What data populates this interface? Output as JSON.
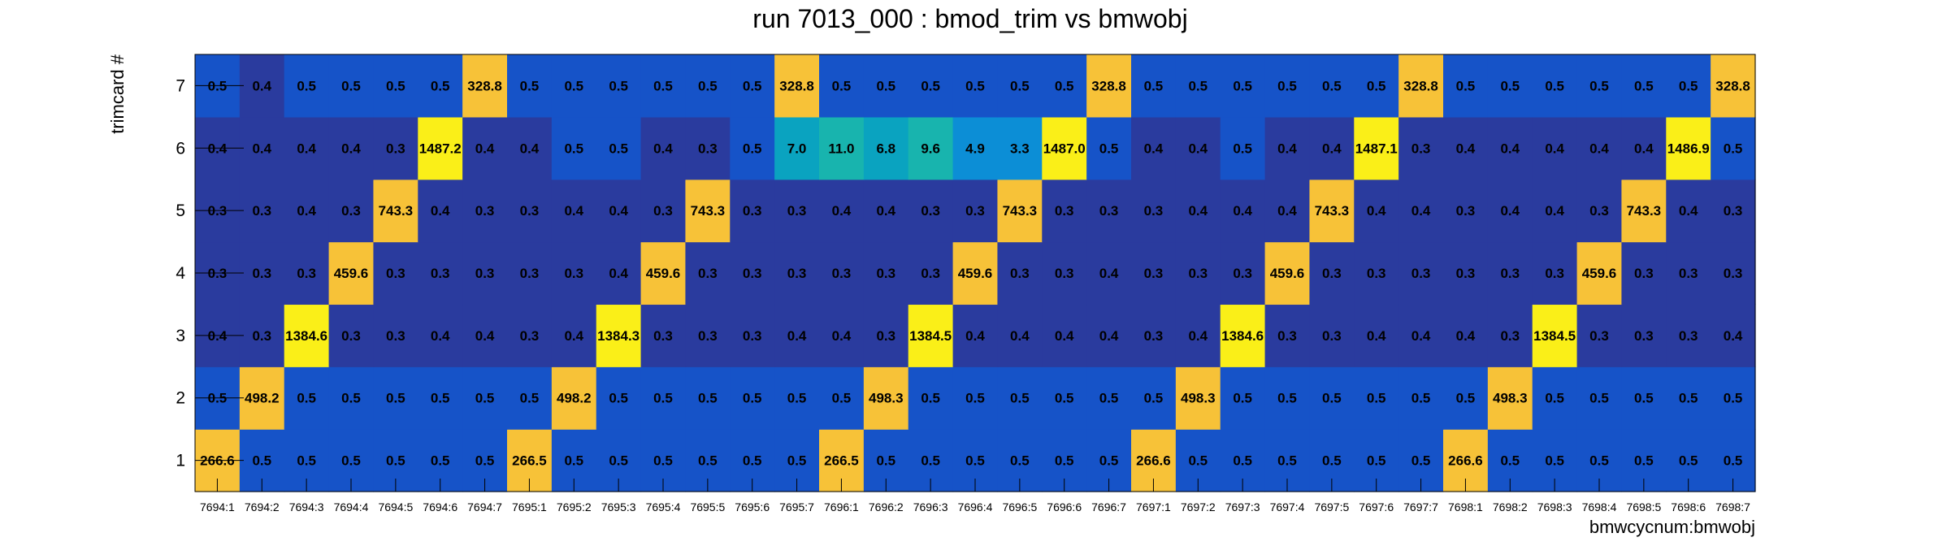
{
  "chart_data": {
    "type": "heatmap",
    "title": "run 7013_000 : bmod_trim vs bmwobj",
    "xlabel": "bmwcycnum:bmwobj",
    "ylabel": "trimcard #",
    "x_categories": [
      "7694:1",
      "7694:2",
      "7694:3",
      "7694:4",
      "7694:5",
      "7694:6",
      "7694:7",
      "7695:1",
      "7695:2",
      "7695:3",
      "7695:4",
      "7695:5",
      "7695:6",
      "7695:7",
      "7696:1",
      "7696:2",
      "7696:3",
      "7696:4",
      "7696:5",
      "7696:6",
      "7696:7",
      "7697:1",
      "7697:2",
      "7697:3",
      "7697:4",
      "7697:5",
      "7697:6",
      "7697:7",
      "7698:1",
      "7698:2",
      "7698:3",
      "7698:4",
      "7698:5",
      "7698:6",
      "7698:7"
    ],
    "y_categories": [
      "1",
      "2",
      "3",
      "4",
      "5",
      "6",
      "7"
    ],
    "grid": false,
    "legend": "none",
    "rows": [
      {
        "y": "1",
        "values": [
          "266.6",
          "0.5",
          "0.5",
          "0.5",
          "0.5",
          "0.5",
          "0.5",
          "266.5",
          "0.5",
          "0.5",
          "0.5",
          "0.5",
          "0.5",
          "0.5",
          "266.5",
          "0.5",
          "0.5",
          "0.5",
          "0.5",
          "0.5",
          "0.5",
          "266.6",
          "0.5",
          "0.5",
          "0.5",
          "0.5",
          "0.5",
          "0.5",
          "266.6",
          "0.5",
          "0.5",
          "0.5",
          "0.5",
          "0.5",
          "0.5"
        ]
      },
      {
        "y": "2",
        "values": [
          "0.5",
          "498.2",
          "0.5",
          "0.5",
          "0.5",
          "0.5",
          "0.5",
          "0.5",
          "498.2",
          "0.5",
          "0.5",
          "0.5",
          "0.5",
          "0.5",
          "0.5",
          "498.3",
          "0.5",
          "0.5",
          "0.5",
          "0.5",
          "0.5",
          "0.5",
          "498.3",
          "0.5",
          "0.5",
          "0.5",
          "0.5",
          "0.5",
          "0.5",
          "498.3",
          "0.5",
          "0.5",
          "0.5",
          "0.5",
          "0.5"
        ]
      },
      {
        "y": "3",
        "values": [
          "0.4",
          "0.3",
          "1384.6",
          "0.3",
          "0.3",
          "0.4",
          "0.4",
          "0.3",
          "0.4",
          "1384.3",
          "0.3",
          "0.3",
          "0.3",
          "0.4",
          "0.4",
          "0.3",
          "1384.5",
          "0.4",
          "0.4",
          "0.4",
          "0.4",
          "0.3",
          "0.4",
          "1384.6",
          "0.3",
          "0.3",
          "0.4",
          "0.4",
          "0.4",
          "0.3",
          "1384.5",
          "0.3",
          "0.3",
          "0.3",
          "0.4"
        ]
      },
      {
        "y": "4",
        "values": [
          "0.3",
          "0.3",
          "0.3",
          "459.6",
          "0.3",
          "0.3",
          "0.3",
          "0.3",
          "0.3",
          "0.4",
          "459.6",
          "0.3",
          "0.3",
          "0.3",
          "0.3",
          "0.3",
          "0.3",
          "459.6",
          "0.3",
          "0.3",
          "0.4",
          "0.3",
          "0.3",
          "0.3",
          "459.6",
          "0.3",
          "0.3",
          "0.3",
          "0.3",
          "0.3",
          "0.3",
          "459.6",
          "0.3",
          "0.3",
          "0.3"
        ]
      },
      {
        "y": "5",
        "values": [
          "0.3",
          "0.3",
          "0.4",
          "0.3",
          "743.3",
          "0.4",
          "0.3",
          "0.3",
          "0.4",
          "0.4",
          "0.3",
          "743.3",
          "0.3",
          "0.3",
          "0.4",
          "0.4",
          "0.3",
          "0.3",
          "743.3",
          "0.3",
          "0.3",
          "0.3",
          "0.4",
          "0.4",
          "0.4",
          "743.3",
          "0.4",
          "0.4",
          "0.3",
          "0.4",
          "0.4",
          "0.3",
          "743.3",
          "0.4",
          "0.3"
        ]
      },
      {
        "y": "6",
        "values": [
          "0.4",
          "0.4",
          "0.4",
          "0.4",
          "0.3",
          "1487.2",
          "0.4",
          "0.4",
          "0.5",
          "0.5",
          "0.4",
          "0.3",
          "0.5",
          "7.0",
          "11.0",
          "6.8",
          "9.6",
          "4.9",
          "3.3",
          "1487.0",
          "0.5",
          "0.4",
          "0.4",
          "0.5",
          "0.4",
          "0.4",
          "1487.1",
          "0.3",
          "0.4",
          "0.4",
          "0.4",
          "0.4",
          "0.4",
          "1486.9",
          "0.5"
        ]
      },
      {
        "y": "7",
        "values": [
          "0.5",
          "0.4",
          "0.5",
          "0.5",
          "0.5",
          "0.5",
          "328.8",
          "0.5",
          "0.5",
          "0.5",
          "0.5",
          "0.5",
          "0.5",
          "328.8",
          "0.5",
          "0.5",
          "0.5",
          "0.5",
          "0.5",
          "0.5",
          "328.8",
          "0.5",
          "0.5",
          "0.5",
          "0.5",
          "0.5",
          "0.5",
          "328.8",
          "0.5",
          "0.5",
          "0.5",
          "0.5",
          "0.5",
          "0.5",
          "328.8"
        ]
      }
    ],
    "colors": {
      "low": "#2a3b9e",
      "mid_low": "#1653c8",
      "teal": "#0aa3c0",
      "teal_light": "#18b4ae",
      "sky": "#0c8ed6",
      "gold": "#f7c238",
      "yellow": "#faef18",
      "background": "#ffffff",
      "axis": "#000000"
    }
  }
}
